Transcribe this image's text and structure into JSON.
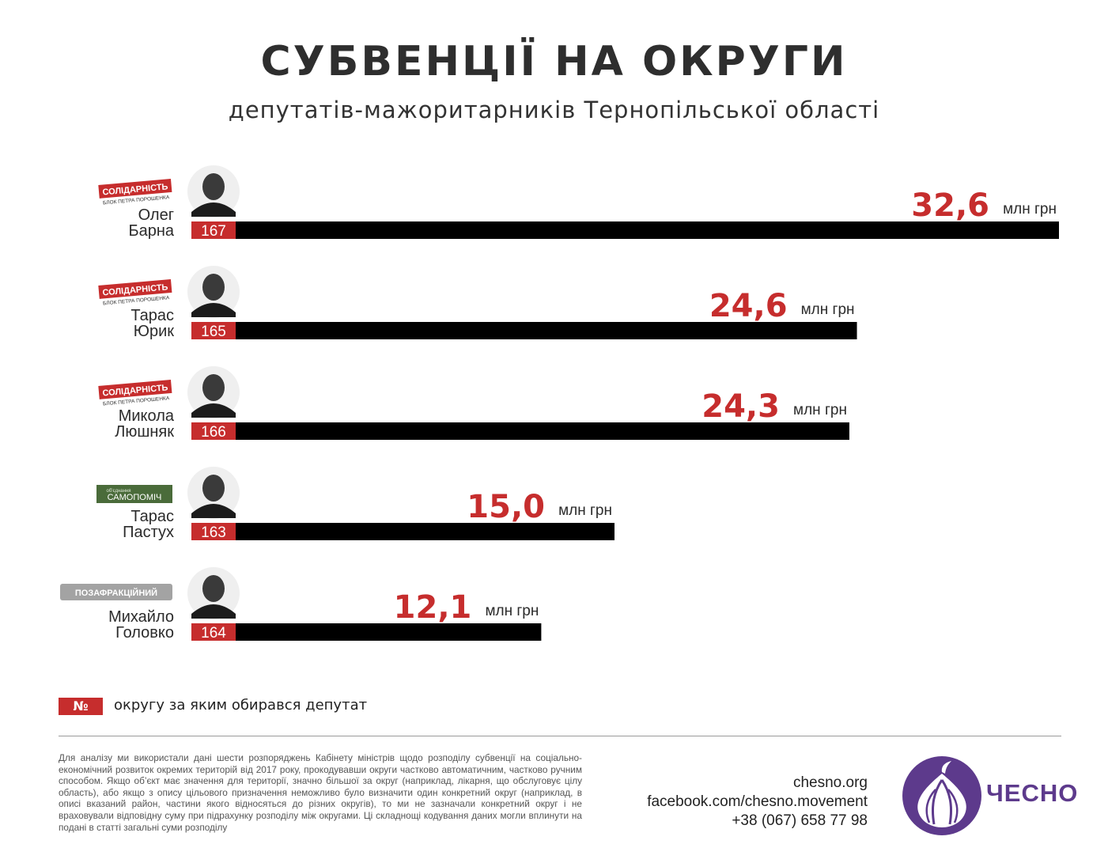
{
  "header": {
    "title": "СУБВЕНЦІЇ НА ОКРУГИ",
    "subtitle": "депутатів-мажоритарників Тернопільської області"
  },
  "unit_label": "млн грн",
  "chart_data": {
    "type": "bar",
    "orientation": "horizontal",
    "title": "СУБВЕНЦІЇ НА ОКРУГИ",
    "subtitle": "депутатів-мажоритарників Тернопільської області",
    "categories": [
      "Олег Барна",
      "Тарас Юрик",
      "Микола Люшняк",
      "Тарас Пастух",
      "Михайло Головко"
    ],
    "values": [
      32.6,
      24.6,
      24.3,
      15.0,
      12.1
    ],
    "value_labels": [
      "32,6",
      "24,6",
      "24,3",
      "15,0",
      "12,1"
    ],
    "unit": "млн грн",
    "xlim": [
      0,
      32.6
    ],
    "grid": false,
    "bar_color": "#000000",
    "value_color": "#c62d2d",
    "rows": [
      {
        "first_name": "Олег",
        "last_name": "Барна",
        "district": "167",
        "party": "solidarnist",
        "value": 32.6,
        "value_label": "32,6"
      },
      {
        "first_name": "Тарас",
        "last_name": "Юрик",
        "district": "165",
        "party": "solidarnist",
        "value": 24.6,
        "value_label": "24,6"
      },
      {
        "first_name": "Микола",
        "last_name": "Люшняк",
        "district": "166",
        "party": "solidarnist",
        "value": 24.3,
        "value_label": "24,3"
      },
      {
        "first_name": "Тарас",
        "last_name": "Пастух",
        "district": "163",
        "party": "samopomich",
        "value": 15.0,
        "value_label": "15,0"
      },
      {
        "first_name": "Михайло",
        "last_name": "Головко",
        "district": "164",
        "party": "pozafraktsiinyi",
        "value": 12.1,
        "value_label": "12,1"
      }
    ]
  },
  "parties": {
    "solidarnist": {
      "name": "СОЛІДАРНІСТЬ",
      "tagline": "БЛОК ПЕТРА ПОРОШЕНКА",
      "color": "#c62d2d"
    },
    "samopomich": {
      "name": "САМОПОМІЧ",
      "tagline": "об'єднання",
      "color": "#4a6b3a"
    },
    "pozafraktsiinyi": {
      "name": "ПОЗАФРАКЦІЙНИЙ",
      "color": "#a3a3a3"
    }
  },
  "legend": {
    "symbol": "№",
    "text": "округу за яким обирався депутат"
  },
  "footnote": "Для аналізу ми використали дані шести розпоряджень Кабінету міністрів щодо розподілу субвенції на соціально-економічний розвиток окремих територій від 2017 року, прокодувавши округи частково автоматичним, частково ручним способом. Якщо об’єкт має значення для території, значно більшої за округ (наприклад, лікарня, що обслуговує цілу область), або якщо з опису цільового призначення неможливо було визначити один конкретний округ (наприклад, в описі вказаний район, частини якого відносяться до різних округів), то ми не зазначали конкретний округ і не враховували відповідну суму при підрахунку розподілу між округами. Ці складнощі кодування даних могли вплинути на подані в статті загальні суми розподілу",
  "contacts": {
    "site": "chesno.org",
    "facebook": "facebook.com/chesno.movement",
    "phone": "+38 (067) 658 77 98"
  },
  "brand": {
    "name": "ЧЕСНО",
    "color": "#5d3a8c",
    "icon": "garlic-icon"
  }
}
